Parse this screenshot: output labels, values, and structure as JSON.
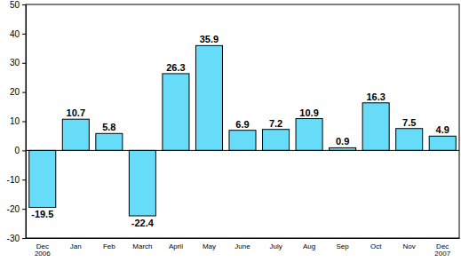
{
  "chart_data": {
    "type": "bar",
    "categories": [
      "Dec 2006",
      "Jan",
      "Feb",
      "March",
      "April",
      "May",
      "June",
      "July",
      "Aug",
      "Sep",
      "Oct",
      "Nov",
      "Dec 2007"
    ],
    "values": [
      -19.5,
      10.7,
      5.8,
      -22.4,
      26.3,
      35.9,
      6.9,
      7.2,
      10.9,
      0.9,
      16.3,
      7.5,
      4.9
    ],
    "color": "#66dcf8",
    "ylim": [
      -30,
      50
    ],
    "yticks": [
      -30,
      -20,
      -10,
      0,
      10,
      20,
      30,
      40,
      50
    ],
    "grid": false,
    "data_labels": true
  }
}
